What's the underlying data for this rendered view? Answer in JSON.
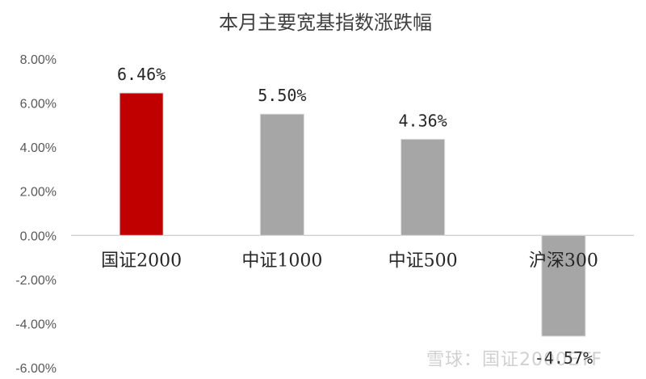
{
  "chart_data": {
    "type": "bar",
    "title": "本月主要宽基指数涨跌幅",
    "categories": [
      "国证2000",
      "中证1000",
      "中证500",
      "沪深300"
    ],
    "values": [
      6.46,
      5.5,
      4.36,
      -4.57
    ],
    "value_labels": [
      "6.46%",
      "5.50%",
      "4.36%",
      "-4.57%"
    ],
    "bar_colors": [
      "#C00000",
      "#A6A6A6",
      "#A6A6A6",
      "#A6A6A6"
    ],
    "ylim": [
      -6,
      8
    ],
    "y_ticks": [
      8,
      6,
      4,
      2,
      0,
      -2,
      -4,
      -6
    ],
    "y_tick_labels": [
      "8.00%",
      "6.00%",
      "4.00%",
      "2.00%",
      "0.00%",
      "-2.00%",
      "-4.00%",
      "-6.00%"
    ],
    "grid": false,
    "legend": "none",
    "xlabel": "",
    "ylabel": ""
  },
  "watermark": "雪球：国证2000ETF"
}
